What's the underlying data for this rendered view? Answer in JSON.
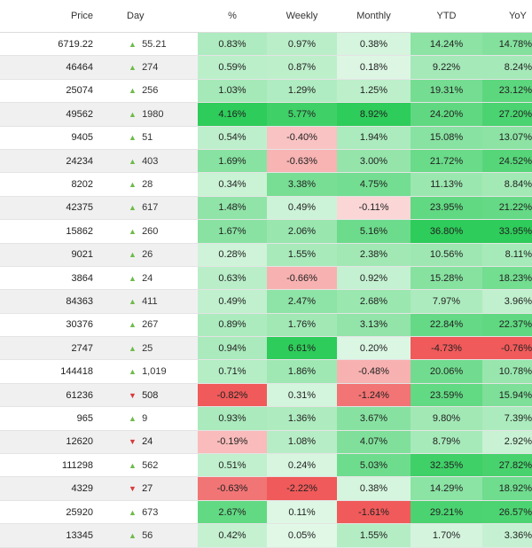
{
  "columns": {
    "price": "Price",
    "day": "Day",
    "pct": "%",
    "weekly": "Weekly",
    "monthly": "Monthly",
    "ytd": "YTD",
    "yoy": "YoY"
  },
  "rows": [
    {
      "price": "6719.22",
      "dir": "up",
      "day": "55.21",
      "pct": "0.83%",
      "weekly": "0.97%",
      "monthly": "0.38%",
      "ytd": "14.24%",
      "yoy": "14.78%"
    },
    {
      "price": "46464",
      "dir": "up",
      "day": "274",
      "pct": "0.59%",
      "weekly": "0.87%",
      "monthly": "0.18%",
      "ytd": "9.22%",
      "yoy": "8.24%"
    },
    {
      "price": "25074",
      "dir": "up",
      "day": "256",
      "pct": "1.03%",
      "weekly": "1.29%",
      "monthly": "1.25%",
      "ytd": "19.31%",
      "yoy": "23.12%"
    },
    {
      "price": "49562",
      "dir": "up",
      "day": "1980",
      "pct": "4.16%",
      "weekly": "5.77%",
      "monthly": "8.92%",
      "ytd": "24.20%",
      "yoy": "27.20%"
    },
    {
      "price": "9405",
      "dir": "up",
      "day": "51",
      "pct": "0.54%",
      "weekly": "-0.40%",
      "monthly": "1.94%",
      "ytd": "15.08%",
      "yoy": "13.07%"
    },
    {
      "price": "24234",
      "dir": "up",
      "day": "403",
      "pct": "1.69%",
      "weekly": "-0.63%",
      "monthly": "3.00%",
      "ytd": "21.72%",
      "yoy": "24.52%"
    },
    {
      "price": "8202",
      "dir": "up",
      "day": "28",
      "pct": "0.34%",
      "weekly": "3.38%",
      "monthly": "4.75%",
      "ytd": "11.13%",
      "yoy": "8.84%"
    },
    {
      "price": "42375",
      "dir": "up",
      "day": "617",
      "pct": "1.48%",
      "weekly": "0.49%",
      "monthly": "-0.11%",
      "ytd": "23.95%",
      "yoy": "21.22%"
    },
    {
      "price": "15862",
      "dir": "up",
      "day": "260",
      "pct": "1.67%",
      "weekly": "2.06%",
      "monthly": "5.16%",
      "ytd": "36.80%",
      "yoy": "33.95%"
    },
    {
      "price": "9021",
      "dir": "up",
      "day": "26",
      "pct": "0.28%",
      "weekly": "1.55%",
      "monthly": "2.38%",
      "ytd": "10.56%",
      "yoy": "8.11%"
    },
    {
      "price": "3864",
      "dir": "up",
      "day": "24",
      "pct": "0.63%",
      "weekly": "-0.66%",
      "monthly": "0.92%",
      "ytd": "15.28%",
      "yoy": "18.23%"
    },
    {
      "price": "84363",
      "dir": "up",
      "day": "411",
      "pct": "0.49%",
      "weekly": "2.47%",
      "monthly": "2.68%",
      "ytd": "7.97%",
      "yoy": "3.96%"
    },
    {
      "price": "30376",
      "dir": "up",
      "day": "267",
      "pct": "0.89%",
      "weekly": "1.76%",
      "monthly": "3.13%",
      "ytd": "22.84%",
      "yoy": "22.37%"
    },
    {
      "price": "2747",
      "dir": "up",
      "day": "25",
      "pct": "0.94%",
      "weekly": "6.61%",
      "monthly": "0.20%",
      "ytd": "-4.73%",
      "yoy": "-0.76%"
    },
    {
      "price": "144418",
      "dir": "up",
      "day": "1,019",
      "pct": "0.71%",
      "weekly": "1.86%",
      "monthly": "-0.48%",
      "ytd": "20.06%",
      "yoy": "10.78%"
    },
    {
      "price": "61236",
      "dir": "down",
      "day": "508",
      "pct": "-0.82%",
      "weekly": "0.31%",
      "monthly": "-1.24%",
      "ytd": "23.59%",
      "yoy": "15.94%"
    },
    {
      "price": "965",
      "dir": "up",
      "day": "9",
      "pct": "0.93%",
      "weekly": "1.36%",
      "monthly": "3.67%",
      "ytd": "9.80%",
      "yoy": "7.39%"
    },
    {
      "price": "12620",
      "dir": "down",
      "day": "24",
      "pct": "-0.19%",
      "weekly": "1.08%",
      "monthly": "4.07%",
      "ytd": "8.79%",
      "yoy": "2.92%"
    },
    {
      "price": "111298",
      "dir": "up",
      "day": "562",
      "pct": "0.51%",
      "weekly": "0.24%",
      "monthly": "5.03%",
      "ytd": "32.35%",
      "yoy": "27.82%"
    },
    {
      "price": "4329",
      "dir": "down",
      "day": "27",
      "pct": "-0.63%",
      "weekly": "-2.22%",
      "monthly": "0.38%",
      "ytd": "14.29%",
      "yoy": "18.92%"
    },
    {
      "price": "25920",
      "dir": "up",
      "day": "673",
      "pct": "2.67%",
      "weekly": "0.11%",
      "monthly": "-1.61%",
      "ytd": "29.21%",
      "yoy": "26.57%"
    },
    {
      "price": "13345",
      "dir": "up",
      "day": "56",
      "pct": "0.42%",
      "weekly": "0.05%",
      "monthly": "1.55%",
      "ytd": "1.70%",
      "yoy": "3.36%"
    }
  ],
  "colors": {
    "positive_strong": "#2ecc5a",
    "negative_strong": "#f05a5a",
    "up_arrow": "#6dbb4b",
    "down_arrow": "#d93a3a"
  }
}
